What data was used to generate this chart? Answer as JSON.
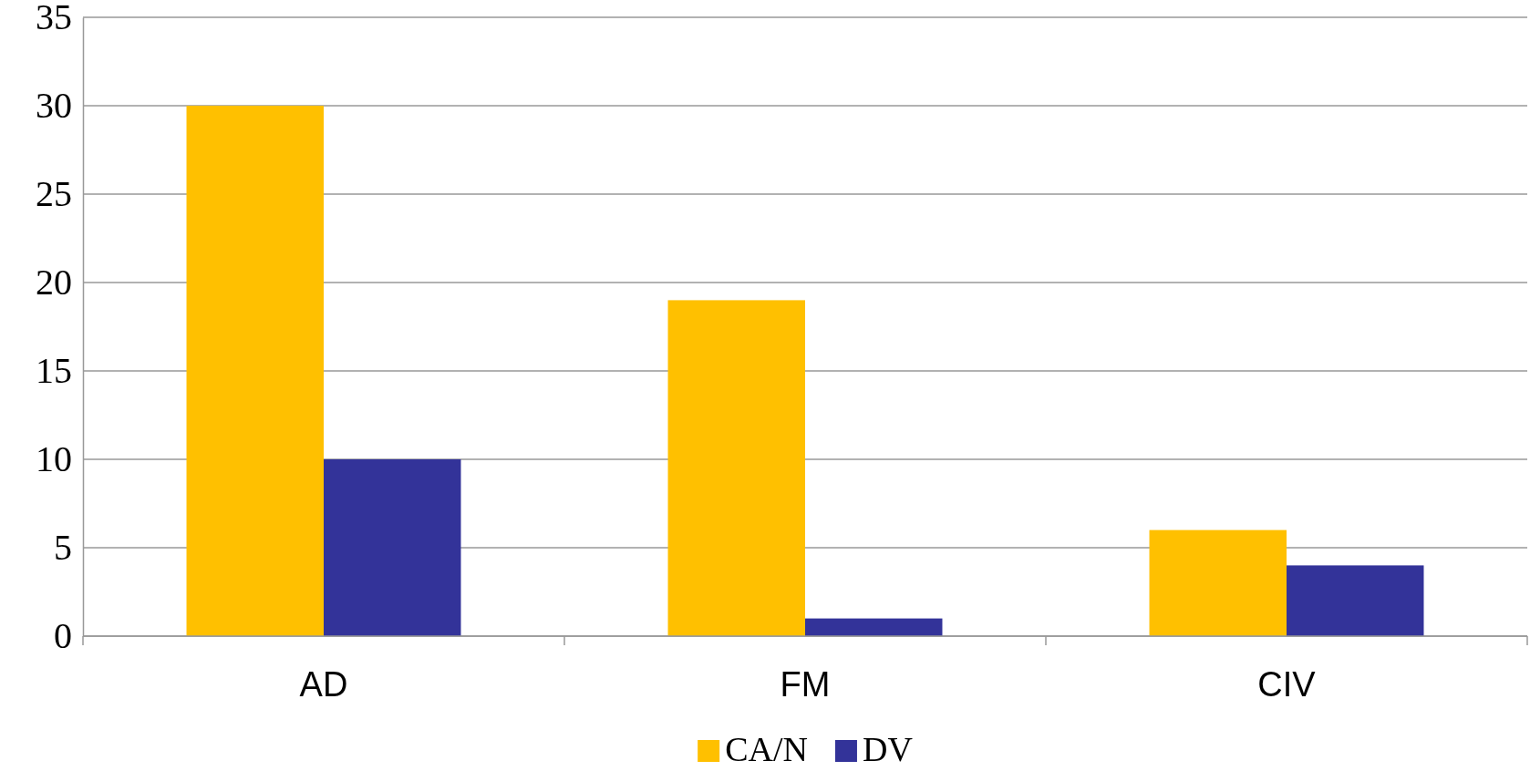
{
  "chart_data": {
    "type": "bar",
    "categories": [
      "AD",
      "FM",
      "CIV"
    ],
    "series": [
      {
        "name": "CA/N",
        "color": "#ffc000",
        "values": [
          30,
          19,
          6
        ]
      },
      {
        "name": "DV",
        "color": "#333399",
        "values": [
          10,
          1,
          4
        ]
      }
    ],
    "ylim": [
      0,
      35
    ],
    "yticks": [
      0,
      5,
      10,
      15,
      20,
      25,
      30,
      35
    ],
    "grid": "y",
    "legend": "bottom"
  }
}
